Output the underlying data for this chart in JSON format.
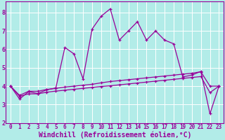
{
  "xlabel": "Windchill (Refroidissement éolien,°C)",
  "background_color": "#b2ece8",
  "line_color": "#990099",
  "grid_color": "#ffffff",
  "xlim": [
    -0.5,
    23.5
  ],
  "ylim": [
    2,
    8.6
  ],
  "xticks": [
    0,
    1,
    2,
    3,
    4,
    5,
    6,
    7,
    8,
    9,
    10,
    11,
    12,
    13,
    14,
    15,
    16,
    17,
    18,
    19,
    20,
    21,
    22,
    23
  ],
  "yticks": [
    2,
    3,
    4,
    5,
    6,
    7,
    8
  ],
  "line1_x": [
    0,
    1,
    2,
    3,
    4,
    5,
    6,
    7,
    8,
    9,
    10,
    11,
    12,
    13,
    14,
    15,
    16,
    17,
    18,
    19,
    20,
    21,
    22,
    23
  ],
  "line1_y": [
    4.0,
    3.3,
    3.7,
    3.6,
    3.8,
    3.9,
    6.1,
    5.75,
    4.4,
    7.1,
    7.8,
    8.2,
    6.5,
    7.0,
    7.5,
    6.5,
    7.0,
    6.5,
    6.3,
    4.5,
    4.6,
    4.8,
    2.5,
    4.0
  ],
  "line2_x": [
    0,
    1,
    2,
    3,
    4,
    5,
    6,
    7,
    8,
    9,
    10,
    11,
    12,
    13,
    14,
    15,
    16,
    17,
    18,
    19,
    20,
    21,
    22,
    23
  ],
  "line2_y": [
    4.0,
    3.5,
    3.72,
    3.72,
    3.82,
    3.88,
    3.95,
    4.0,
    4.05,
    4.1,
    4.18,
    4.25,
    4.3,
    4.35,
    4.4,
    4.45,
    4.5,
    4.55,
    4.6,
    4.65,
    4.7,
    4.78,
    4.0,
    4.0
  ],
  "line3_x": [
    0,
    1,
    2,
    3,
    4,
    5,
    6,
    7,
    8,
    9,
    10,
    11,
    12,
    13,
    14,
    15,
    16,
    17,
    18,
    19,
    20,
    21,
    22,
    23
  ],
  "line3_y": [
    4.0,
    3.45,
    3.58,
    3.58,
    3.67,
    3.73,
    3.78,
    3.83,
    3.88,
    3.93,
    3.98,
    4.02,
    4.07,
    4.12,
    4.17,
    4.22,
    4.27,
    4.32,
    4.37,
    4.42,
    4.47,
    4.52,
    3.65,
    4.0
  ],
  "font_family": "monospace",
  "tick_fontsize": 5.5,
  "xlabel_fontsize": 7.0
}
